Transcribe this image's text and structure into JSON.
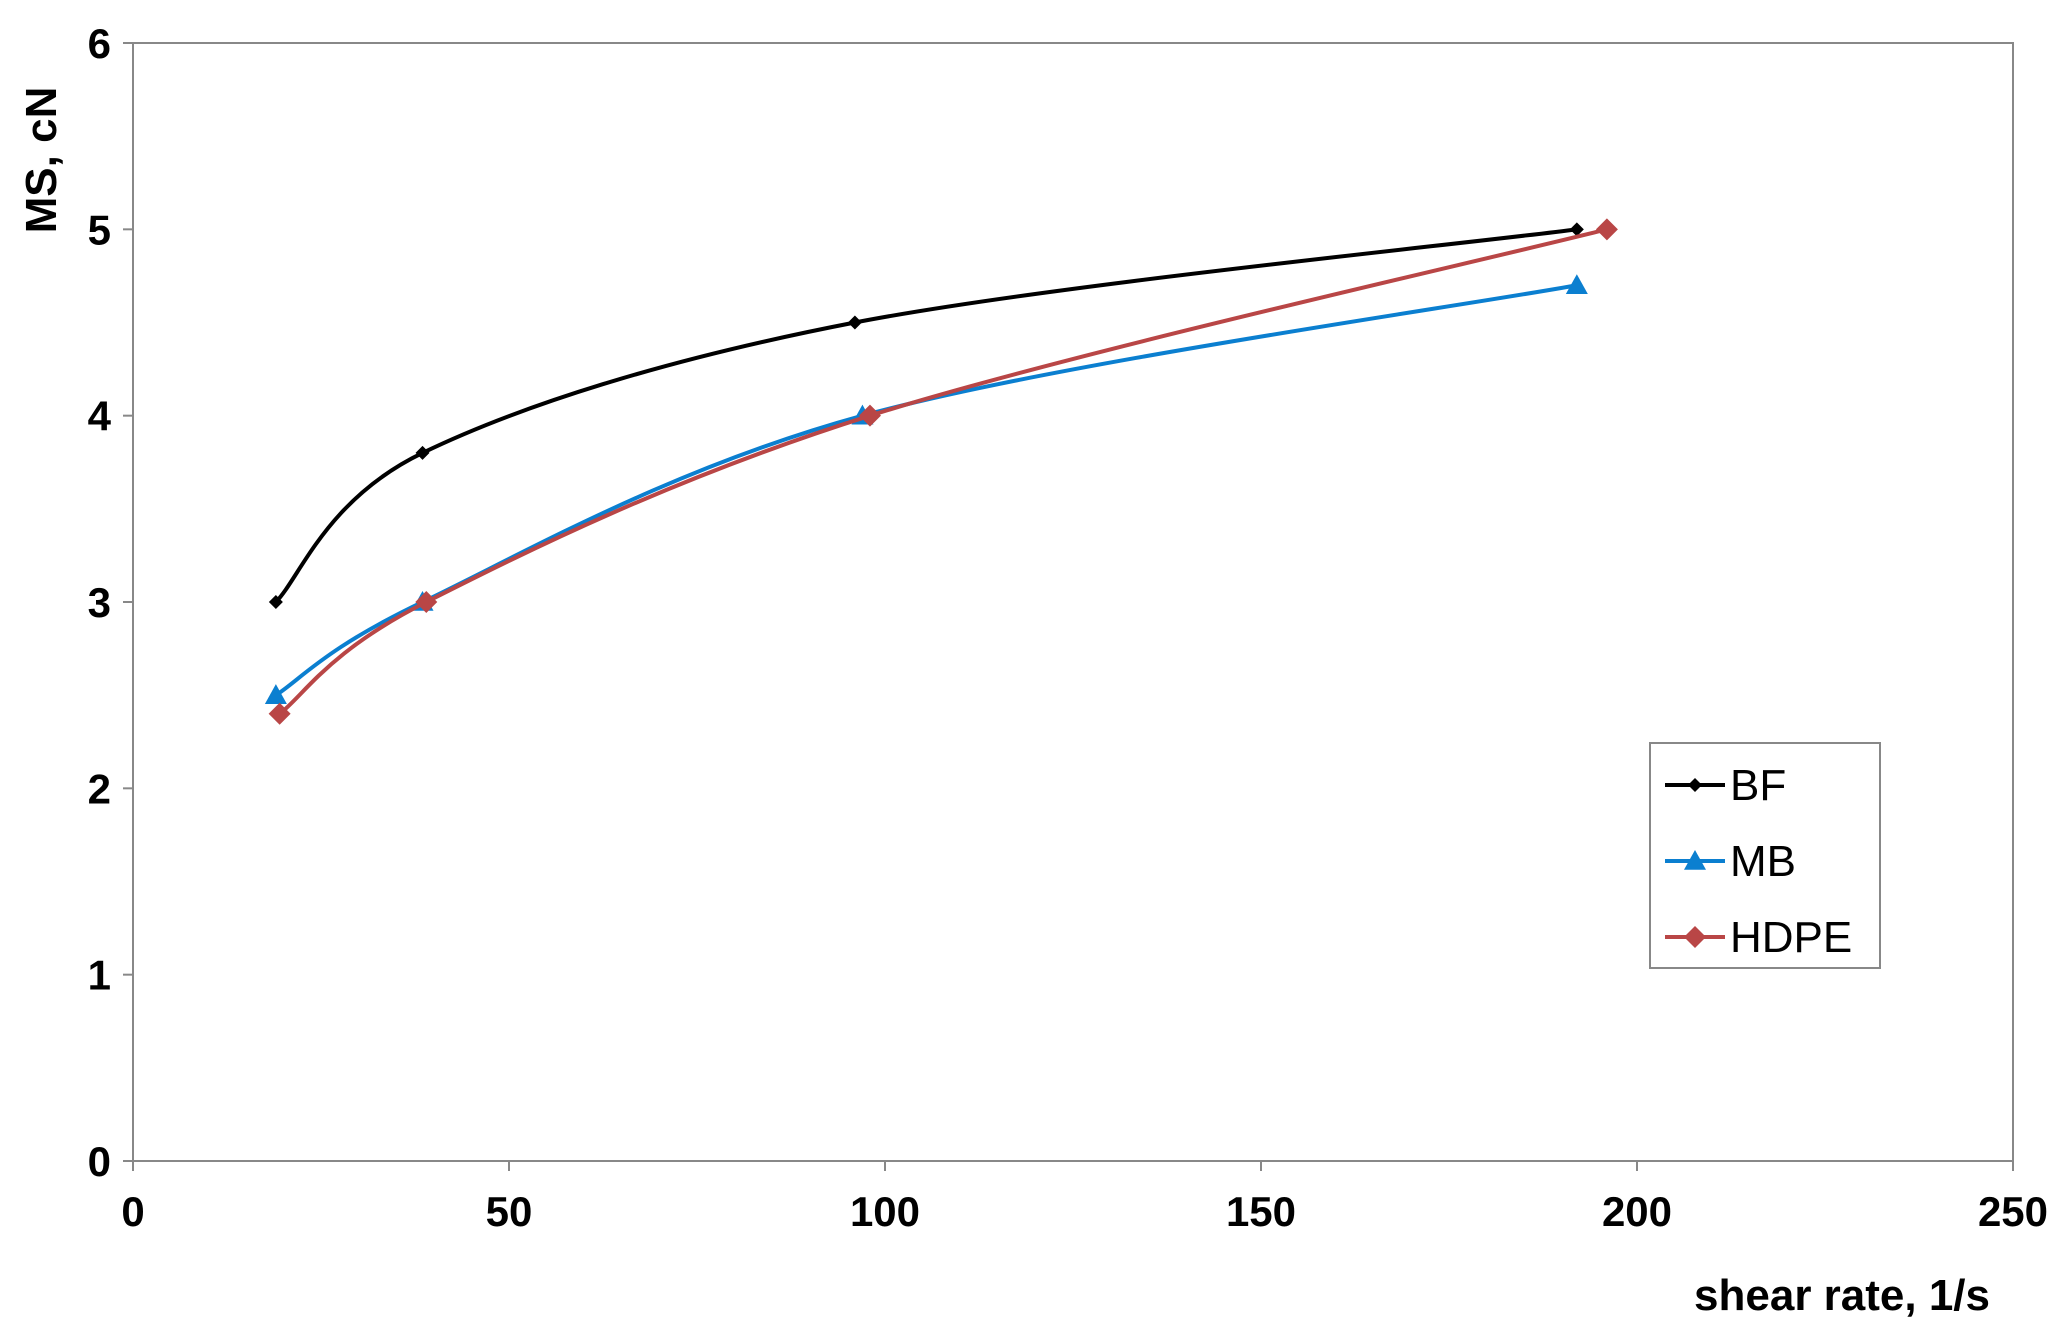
{
  "chart_data": {
    "type": "line",
    "title": "",
    "xlabel": "shear rate, 1/s",
    "ylabel": "MS, cN",
    "xlim": [
      0,
      250
    ],
    "ylim": [
      0,
      6
    ],
    "x_ticks": [
      "0",
      "50",
      "100",
      "150",
      "200",
      "250"
    ],
    "y_ticks": [
      "0",
      "1",
      "2",
      "3",
      "4",
      "5",
      "6"
    ],
    "grid": false,
    "legend_position": "right",
    "series": [
      {
        "name": "BF",
        "color": "#000000",
        "marker": "diamond-small",
        "x": [
          19,
          38.5,
          96,
          192
        ],
        "y": [
          3.0,
          3.8,
          4.5,
          5.0
        ]
      },
      {
        "name": "MB",
        "color": "#0b7fd0",
        "marker": "triangle",
        "x": [
          19,
          38.5,
          97,
          192
        ],
        "y": [
          2.5,
          3.0,
          4.0,
          4.7
        ]
      },
      {
        "name": "HDPE",
        "color": "#b94646",
        "marker": "diamond",
        "x": [
          19.5,
          39,
          98,
          196
        ],
        "y": [
          2.4,
          3.0,
          4.0,
          5.0
        ]
      }
    ]
  }
}
